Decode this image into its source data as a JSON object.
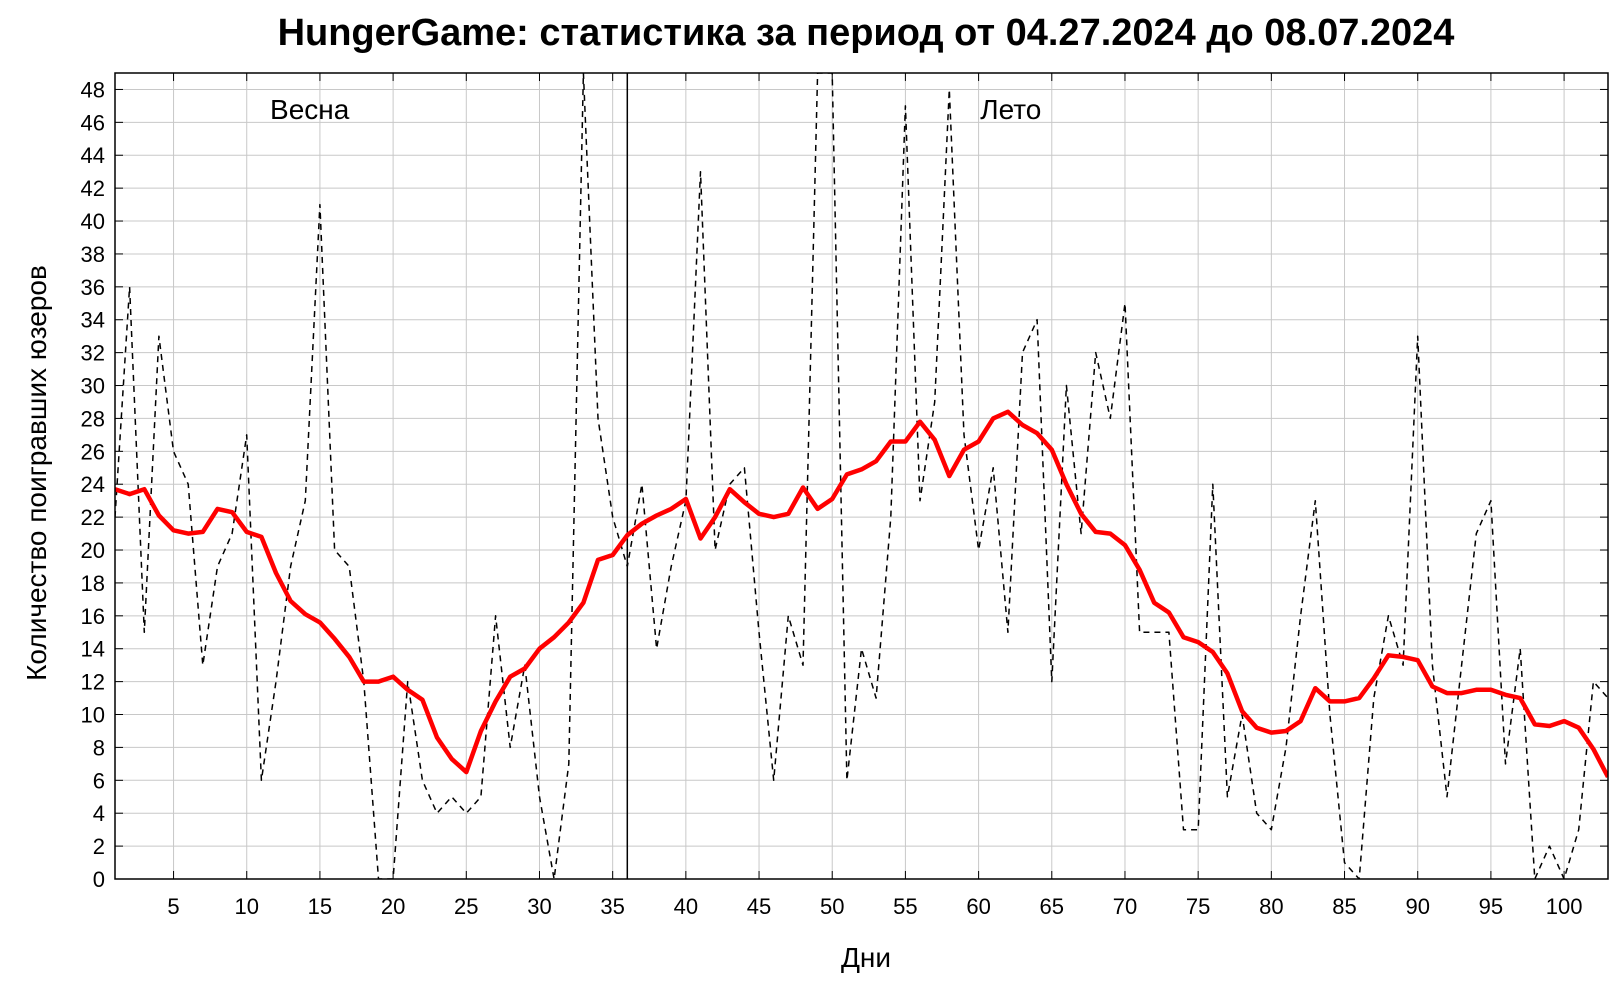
{
  "chart_data": {
    "type": "line",
    "title": "HungerGame: статистика за период от 04.27.2024 до 08.07.2024",
    "xlabel": "Дни",
    "ylabel": "Количество поигравших юзеров",
    "xlim": [
      1,
      103
    ],
    "ylim": [
      0,
      49
    ],
    "xticks": [
      5,
      10,
      15,
      20,
      25,
      30,
      35,
      40,
      45,
      50,
      55,
      60,
      65,
      70,
      75,
      80,
      85,
      90,
      95,
      100
    ],
    "yticks": [
      0,
      2,
      4,
      6,
      8,
      10,
      12,
      14,
      16,
      18,
      20,
      22,
      24,
      26,
      28,
      30,
      32,
      34,
      36,
      38,
      40,
      42,
      44,
      46,
      48
    ],
    "grid": true,
    "season_divider_x": 36,
    "annotations": [
      {
        "text": "Весна",
        "x": 14.3,
        "y": 46.2
      },
      {
        "text": "Лето",
        "x": 62.2,
        "y": 46.2
      }
    ],
    "colors": {
      "daily": "#000000",
      "smoothed": "#ff0000"
    },
    "series": [
      {
        "style": "dashed",
        "x": [
          1,
          2,
          3,
          4,
          5,
          6,
          7,
          8,
          9,
          10,
          11,
          12,
          13,
          14,
          15,
          16,
          17,
          18,
          19,
          20,
          21,
          22,
          23,
          24,
          25,
          26,
          27,
          28,
          29,
          30,
          31,
          32,
          33,
          34,
          35,
          36,
          37,
          38,
          39,
          40,
          41,
          42,
          43,
          44,
          45,
          46,
          47,
          48,
          49,
          50,
          51,
          52,
          53,
          54,
          55,
          56,
          57,
          58,
          59,
          60,
          61,
          62,
          63,
          64,
          65,
          66,
          67,
          68,
          69,
          70,
          71,
          72,
          73,
          74,
          75,
          76,
          77,
          78,
          79,
          80,
          81,
          82,
          83,
          84,
          85,
          86,
          87,
          88,
          89,
          90,
          91,
          92,
          93,
          94,
          95,
          96,
          97,
          98,
          99,
          100,
          101,
          102,
          103
        ],
        "values": [
          22,
          36,
          15,
          33,
          26,
          24,
          13,
          19,
          21,
          27,
          6,
          12,
          19,
          23,
          41,
          20,
          19,
          12,
          0,
          0,
          12,
          6,
          4,
          5,
          4,
          5,
          16,
          8,
          13,
          5,
          0,
          7,
          49,
          28,
          22,
          19,
          24,
          14,
          19,
          23,
          43,
          20,
          24,
          25,
          15,
          6,
          16,
          13,
          49,
          49,
          6,
          14,
          11,
          22,
          47,
          23,
          29,
          48,
          27,
          20,
          25,
          15,
          32,
          34,
          12,
          30,
          21,
          32,
          28,
          35,
          15,
          15,
          15,
          3,
          3,
          24,
          5,
          10,
          4,
          3,
          8,
          16,
          23,
          10,
          1,
          0,
          11,
          16,
          13,
          33,
          13,
          5,
          13,
          21,
          23,
          7,
          14,
          0,
          2,
          0,
          3,
          12,
          11
        ]
      },
      {
        "style": "solid",
        "x": [
          1,
          2,
          3,
          4,
          5,
          6,
          7,
          8,
          9,
          10,
          11,
          12,
          13,
          14,
          15,
          16,
          17,
          18,
          19,
          20,
          21,
          22,
          23,
          24,
          25,
          26,
          27,
          28,
          29,
          30,
          31,
          32,
          33,
          34,
          35,
          36,
          37,
          38,
          39,
          40,
          41,
          42,
          43,
          44,
          45,
          46,
          47,
          48,
          49,
          50,
          51,
          52,
          53,
          54,
          55,
          56,
          57,
          58,
          59,
          60,
          61,
          62,
          63,
          64,
          65,
          66,
          67,
          68,
          69,
          70,
          71,
          72,
          73,
          74,
          75,
          76,
          77,
          78,
          79,
          80,
          81,
          82,
          83,
          84,
          85,
          86,
          87,
          88,
          89,
          90,
          91,
          92,
          93,
          94,
          95,
          96,
          97,
          98,
          99,
          100,
          101,
          102,
          103
        ],
        "values": [
          23.7,
          23.4,
          23.7,
          22.1,
          21.2,
          21.0,
          21.1,
          22.5,
          22.3,
          21.1,
          20.8,
          18.6,
          16.9,
          16.1,
          15.6,
          14.6,
          13.5,
          12.0,
          12.0,
          12.3,
          11.5,
          10.9,
          8.6,
          7.3,
          6.5,
          9.0,
          10.8,
          12.3,
          12.8,
          14.0,
          14.7,
          15.6,
          16.8,
          19.4,
          19.7,
          20.9,
          21.6,
          22.1,
          22.5,
          23.1,
          20.7,
          22.0,
          23.7,
          22.9,
          22.2,
          22.0,
          22.2,
          23.8,
          22.5,
          23.1,
          24.6,
          24.9,
          25.4,
          26.6,
          26.6,
          27.8,
          26.7,
          24.5,
          26.1,
          26.6,
          28.0,
          28.4,
          27.6,
          27.1,
          26.1,
          24.0,
          22.2,
          21.1,
          21.0,
          20.3,
          18.8,
          16.8,
          16.2,
          14.7,
          14.4,
          13.8,
          12.5,
          10.2,
          9.2,
          8.9,
          9.0,
          9.6,
          11.6,
          10.8,
          10.8,
          11.0,
          12.2,
          13.6,
          13.5,
          13.3,
          11.7,
          11.3,
          11.3,
          11.5,
          11.5,
          11.2,
          11.0,
          9.4,
          9.3,
          9.6,
          9.2,
          7.9,
          6.2
        ]
      }
    ]
  }
}
